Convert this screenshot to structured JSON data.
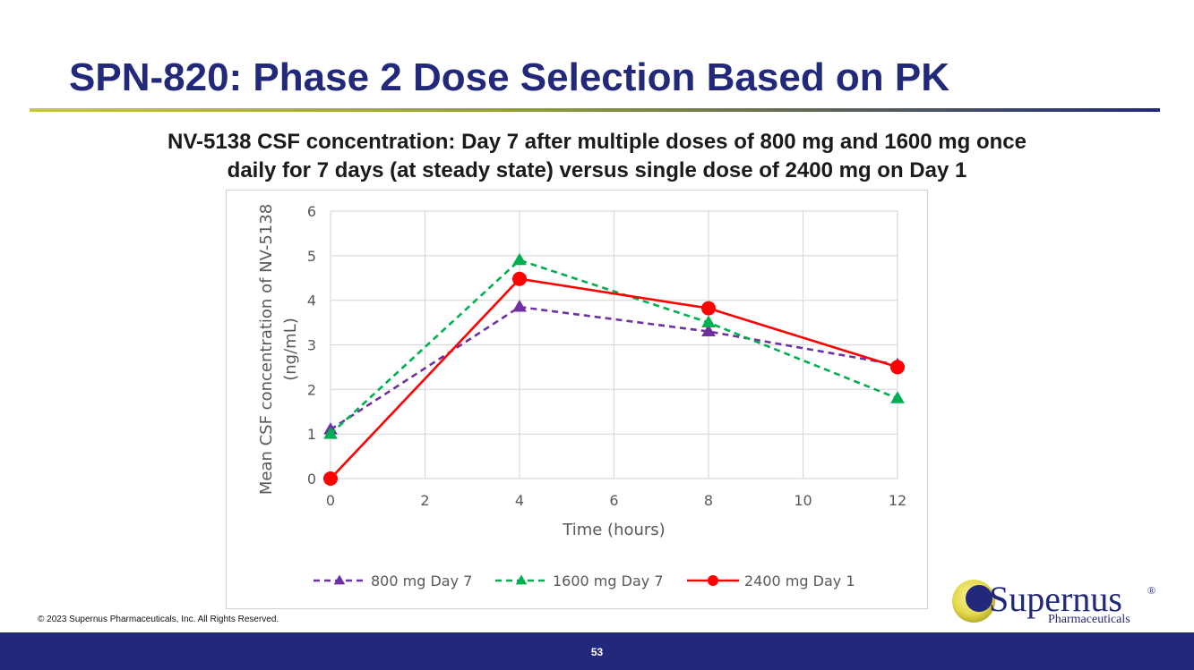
{
  "slide": {
    "title": "SPN-820: Phase 2 Dose Selection Based on PK",
    "subtitle_line1": "NV-5138 CSF concentration: Day 7 after multiple doses of 800 mg and 1600 mg once",
    "subtitle_line2": "daily for 7 days (at steady state) versus single dose of 2400 mg on Day 1",
    "copyright": "© 2023 Supernus Pharmaceuticals, Inc. All Rights Reserved.",
    "page_number": "53"
  },
  "logo": {
    "name": "Supernus",
    "registered": "®",
    "tagline": "Pharmaceuticals"
  },
  "colors": {
    "title": "#23297a",
    "footer": "#23297a",
    "series_800": "#7030a0",
    "series_1600": "#00b050",
    "series_2400": "#ff0000"
  },
  "chart_data": {
    "type": "line",
    "title": "",
    "xlabel": "Time (hours)",
    "ylabel_line1": "Mean CSF concentration of NV-5138",
    "ylabel_line2": "(ng/mL)",
    "xlim": [
      0,
      12
    ],
    "ylim": [
      0,
      6
    ],
    "xticks": [
      0,
      2,
      4,
      6,
      8,
      10,
      12
    ],
    "yticks": [
      0,
      1,
      2,
      3,
      4,
      5,
      6
    ],
    "grid": true,
    "legend_position": "bottom",
    "x": [
      0,
      4,
      8,
      12
    ],
    "series": [
      {
        "name": "800 mg Day 7",
        "values": [
          1.1,
          3.85,
          3.3,
          2.55
        ],
        "color": "#7030a0",
        "dash": true,
        "marker": "triangle"
      },
      {
        "name": "1600 mg Day 7",
        "values": [
          1.0,
          4.9,
          3.5,
          1.8
        ],
        "color": "#00b050",
        "dash": true,
        "marker": "triangle"
      },
      {
        "name": "2400 mg Day 1",
        "values": [
          0,
          4.48,
          3.82,
          2.5
        ],
        "color": "#ff0000",
        "dash": false,
        "marker": "circle"
      }
    ]
  }
}
